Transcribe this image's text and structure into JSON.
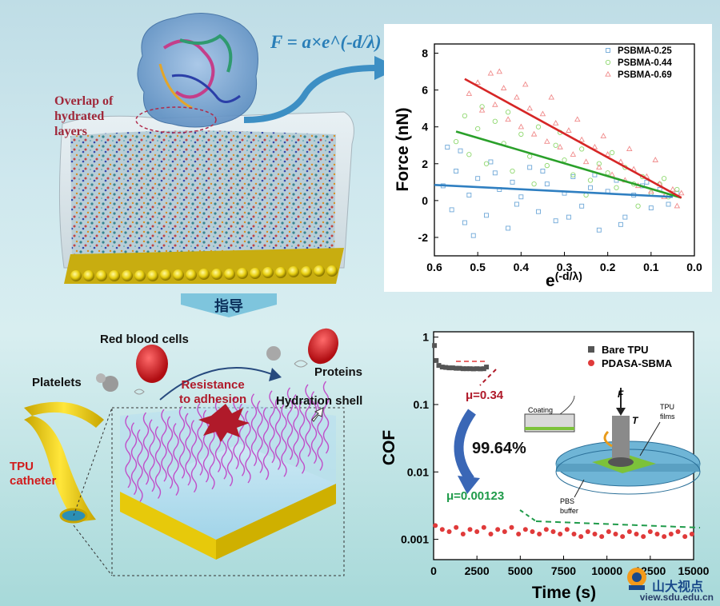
{
  "top_left": {
    "equation": "F = a×e^(-d/λ)",
    "overlap_label": [
      "Overlap of",
      "hydrated",
      "layers"
    ]
  },
  "banner": {
    "label": "指导"
  },
  "bottom_left": {
    "red_blood_cells": "Red blood cells",
    "platelets": "Platelets",
    "proteins": "Proteins",
    "resistance": [
      "Resistance",
      "to adhesion"
    ],
    "hydration_shell": "Hydration shell",
    "tpu_catheter": [
      "TPU",
      "catheter"
    ]
  },
  "chart_data": [
    {
      "type": "scatter",
      "xlabel": "e(-d/λ)",
      "ylabel": "Force (nN)",
      "xlim": [
        0.6,
        0.0
      ],
      "ylim": [
        -3,
        8.5
      ],
      "xticks": [
        "0.6",
        "0.5",
        "0.4",
        "0.3",
        "0.2",
        "0.1",
        "0.0"
      ],
      "yticks": [
        "-2",
        "0",
        "2",
        "4",
        "6",
        "8"
      ],
      "series": [
        {
          "name": "PSBMA-0.25",
          "marker": "square",
          "color": "#6fa8d8",
          "fit": [
            [
              0.6,
              0.85
            ],
            [
              0.05,
              0.2
            ]
          ],
          "points": [
            [
              0.58,
              0.8
            ],
            [
              0.56,
              -0.5
            ],
            [
              0.55,
              1.6
            ],
            [
              0.54,
              2.7
            ],
            [
              0.53,
              -1.2
            ],
            [
              0.52,
              0.3
            ],
            [
              0.5,
              1.2
            ],
            [
              0.48,
              -0.8
            ],
            [
              0.47,
              2.1
            ],
            [
              0.45,
              0.6
            ],
            [
              0.43,
              -1.5
            ],
            [
              0.42,
              1.0
            ],
            [
              0.4,
              0.2
            ],
            [
              0.38,
              1.8
            ],
            [
              0.36,
              -0.6
            ],
            [
              0.34,
              0.9
            ],
            [
              0.32,
              -1.1
            ],
            [
              0.3,
              0.4
            ],
            [
              0.28,
              1.3
            ],
            [
              0.26,
              -0.3
            ],
            [
              0.24,
              0.7
            ],
            [
              0.22,
              -1.6
            ],
            [
              0.2,
              0.5
            ],
            [
              0.18,
              1.1
            ],
            [
              0.16,
              -0.9
            ],
            [
              0.14,
              0.3
            ],
            [
              0.12,
              0.8
            ],
            [
              0.1,
              -0.4
            ],
            [
              0.08,
              0.6
            ],
            [
              0.06,
              -0.2
            ],
            [
              0.04,
              0.4
            ],
            [
              0.57,
              2.9
            ],
            [
              0.51,
              -1.9
            ],
            [
              0.46,
              1.5
            ],
            [
              0.41,
              -0.2
            ],
            [
              0.35,
              1.6
            ],
            [
              0.29,
              -0.9
            ],
            [
              0.23,
              1.4
            ],
            [
              0.17,
              -1.3
            ],
            [
              0.11,
              1.0
            ]
          ]
        },
        {
          "name": "PSBMA-0.44",
          "marker": "circle",
          "color": "#8fd86f",
          "fit": [
            [
              0.55,
              3.75
            ],
            [
              0.03,
              0.15
            ]
          ],
          "points": [
            [
              0.55,
              3.2
            ],
            [
              0.53,
              4.6
            ],
            [
              0.52,
              2.5
            ],
            [
              0.5,
              3.9
            ],
            [
              0.48,
              2.0
            ],
            [
              0.46,
              4.3
            ],
            [
              0.44,
              3.1
            ],
            [
              0.42,
              1.6
            ],
            [
              0.4,
              3.6
            ],
            [
              0.38,
              2.4
            ],
            [
              0.36,
              4.0
            ],
            [
              0.34,
              1.9
            ],
            [
              0.32,
              3.0
            ],
            [
              0.3,
              2.2
            ],
            [
              0.28,
              1.4
            ],
            [
              0.26,
              2.8
            ],
            [
              0.24,
              1.1
            ],
            [
              0.22,
              2.0
            ],
            [
              0.2,
              1.5
            ],
            [
              0.18,
              0.7
            ],
            [
              0.16,
              1.8
            ],
            [
              0.14,
              0.9
            ],
            [
              0.12,
              1.3
            ],
            [
              0.1,
              0.4
            ],
            [
              0.08,
              0.9
            ],
            [
              0.06,
              0.2
            ],
            [
              0.04,
              0.6
            ],
            [
              0.49,
              5.1
            ],
            [
              0.43,
              4.8
            ],
            [
              0.37,
              0.9
            ],
            [
              0.31,
              3.7
            ],
            [
              0.25,
              0.3
            ],
            [
              0.19,
              2.6
            ],
            [
              0.13,
              -0.3
            ],
            [
              0.07,
              1.2
            ]
          ]
        },
        {
          "name": "PSBMA-0.69",
          "marker": "triangle",
          "color": "#f08a8a",
          "fit": [
            [
              0.53,
              6.6
            ],
            [
              0.03,
              0.15
            ]
          ],
          "points": [
            [
              0.52,
              5.8
            ],
            [
              0.5,
              6.4
            ],
            [
              0.49,
              4.9
            ],
            [
              0.47,
              6.9
            ],
            [
              0.46,
              5.2
            ],
            [
              0.44,
              6.1
            ],
            [
              0.43,
              4.4
            ],
            [
              0.41,
              5.6
            ],
            [
              0.4,
              4.0
            ],
            [
              0.38,
              5.0
            ],
            [
              0.37,
              3.6
            ],
            [
              0.35,
              4.7
            ],
            [
              0.34,
              3.2
            ],
            [
              0.32,
              4.2
            ],
            [
              0.31,
              2.9
            ],
            [
              0.29,
              3.8
            ],
            [
              0.28,
              2.5
            ],
            [
              0.26,
              3.3
            ],
            [
              0.25,
              2.1
            ],
            [
              0.23,
              2.9
            ],
            [
              0.22,
              1.8
            ],
            [
              0.2,
              2.5
            ],
            [
              0.19,
              1.4
            ],
            [
              0.17,
              2.1
            ],
            [
              0.16,
              1.1
            ],
            [
              0.14,
              1.7
            ],
            [
              0.13,
              0.8
            ],
            [
              0.11,
              1.3
            ],
            [
              0.1,
              0.5
            ],
            [
              0.08,
              0.9
            ],
            [
              0.07,
              0.2
            ],
            [
              0.05,
              0.6
            ],
            [
              0.04,
              -0.3
            ],
            [
              0.03,
              0.4
            ],
            [
              0.45,
              7.0
            ],
            [
              0.39,
              6.3
            ],
            [
              0.33,
              5.6
            ],
            [
              0.27,
              4.4
            ],
            [
              0.21,
              3.5
            ],
            [
              0.15,
              2.8
            ],
            [
              0.09,
              2.2
            ]
          ]
        }
      ]
    },
    {
      "type": "scatter",
      "xlabel": "Time (s)",
      "ylabel": "COF",
      "yscale": "log",
      "xlim": [
        0,
        15000
      ],
      "ylim": [
        0.0005,
        1.2
      ],
      "xticks": [
        "0",
        "2500",
        "5000",
        "7500",
        "10000",
        "12500",
        "15000"
      ],
      "yticks": [
        "0.001",
        "0.01",
        "0.1",
        "1"
      ],
      "annotations": [
        "μ=0.34",
        "μ=0.00123",
        "99.64%"
      ],
      "series": [
        {
          "name": "Bare TPU",
          "marker": "square",
          "color": "#555555",
          "points": [
            [
              50,
              0.75
            ],
            [
              150,
              0.45
            ],
            [
              300,
              0.38
            ],
            [
              500,
              0.36
            ],
            [
              700,
              0.355
            ],
            [
              900,
              0.35
            ],
            [
              1100,
              0.35
            ],
            [
              1300,
              0.345
            ],
            [
              1500,
              0.345
            ],
            [
              1700,
              0.34
            ],
            [
              1900,
              0.34
            ],
            [
              2100,
              0.34
            ],
            [
              2300,
              0.338
            ],
            [
              2500,
              0.34
            ],
            [
              2700,
              0.338
            ],
            [
              2900,
              0.34
            ],
            [
              3050,
              0.36
            ]
          ]
        },
        {
          "name": "PDASA-SBMA",
          "marker": "circle",
          "color": "#e03a3a",
          "points": [
            [
              100,
              0.0016
            ],
            [
              500,
              0.0014
            ],
            [
              900,
              0.0013
            ],
            [
              1300,
              0.0015
            ],
            [
              1700,
              0.0012
            ],
            [
              2100,
              0.0014
            ],
            [
              2500,
              0.0013
            ],
            [
              2900,
              0.0015
            ],
            [
              3300,
              0.0012
            ],
            [
              3700,
              0.0014
            ],
            [
              4100,
              0.0013
            ],
            [
              4500,
              0.0015
            ],
            [
              4900,
              0.0012
            ],
            [
              5300,
              0.0014
            ],
            [
              5700,
              0.0013
            ],
            [
              6100,
              0.0012
            ],
            [
              6500,
              0.0014
            ],
            [
              6900,
              0.0013
            ],
            [
              7300,
              0.0012
            ],
            [
              7700,
              0.0014
            ],
            [
              8100,
              0.0012
            ],
            [
              8500,
              0.0011
            ],
            [
              8900,
              0.0013
            ],
            [
              9300,
              0.0012
            ],
            [
              9700,
              0.0011
            ],
            [
              10100,
              0.0013
            ],
            [
              10500,
              0.0012
            ],
            [
              10900,
              0.0011
            ],
            [
              11300,
              0.0013
            ],
            [
              11700,
              0.0012
            ],
            [
              12100,
              0.0011
            ],
            [
              12500,
              0.0013
            ],
            [
              12900,
              0.0012
            ],
            [
              13300,
              0.0011
            ],
            [
              13700,
              0.0012
            ],
            [
              14100,
              0.0013
            ],
            [
              14500,
              0.0011
            ],
            [
              14900,
              0.0012
            ]
          ]
        }
      ],
      "inset_labels": {
        "coating": "Coating",
        "force": "F",
        "torque": "T",
        "films": [
          "TPU",
          "films"
        ],
        "buffer": [
          "PBS",
          "buffer"
        ]
      }
    }
  ],
  "watermark": {
    "brand": "山大视点",
    "url": "view.sdu.edu.cn"
  }
}
